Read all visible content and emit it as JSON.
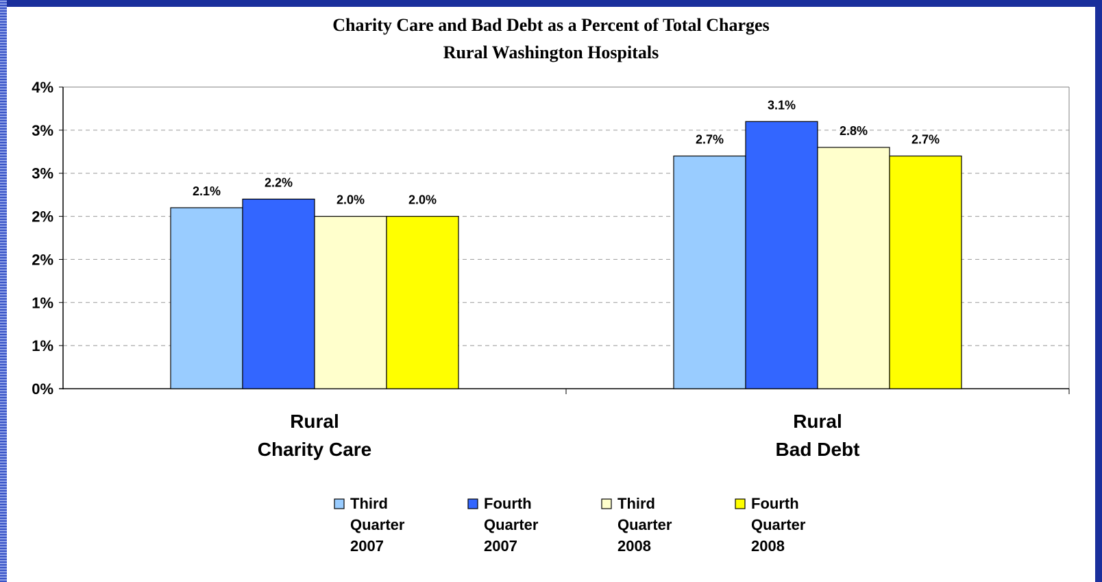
{
  "chart_data": {
    "type": "bar",
    "title": "Charity Care and Bad Debt as a Percent of Total Charges",
    "subtitle": "Rural Washington Hospitals",
    "categories": [
      [
        "Rural",
        "Charity Care"
      ],
      [
        "Rural",
        "Bad Debt"
      ]
    ],
    "series": [
      {
        "name": [
          "Third",
          "Quarter",
          "2007"
        ],
        "color": "#99ccff",
        "values": [
          2.1,
          2.7
        ],
        "labels": [
          "2.1%",
          "2.7%"
        ]
      },
      {
        "name": [
          "Fourth",
          "Quarter",
          "2007"
        ],
        "color": "#3366ff",
        "values": [
          2.2,
          3.1
        ],
        "labels": [
          "2.2%",
          "3.1%"
        ]
      },
      {
        "name": [
          "Third",
          "Quarter",
          "2008"
        ],
        "color": "#ffffcc",
        "values": [
          2.0,
          2.8
        ],
        "labels": [
          "2.0%",
          "2.8%"
        ]
      },
      {
        "name": [
          "Fourth",
          "Quarter",
          "2008"
        ],
        "color": "#ffff00",
        "values": [
          2.0,
          2.7
        ],
        "labels": [
          "2.0%",
          "2.7%"
        ]
      }
    ],
    "y_ticks": [
      0,
      0.5,
      1.0,
      1.5,
      2.0,
      2.5,
      3.0,
      3.5
    ],
    "y_tick_labels": [
      "0%",
      "1%",
      "1%",
      "2%",
      "2%",
      "3%",
      "3%",
      "4%"
    ],
    "ylim": [
      0,
      3.5
    ],
    "grid": true,
    "legend_position": "bottom"
  }
}
